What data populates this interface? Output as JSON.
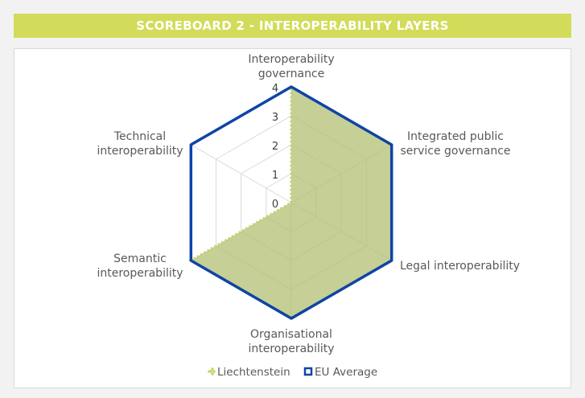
{
  "banner": {
    "title": "SCOREBOARD 2 - INTEROPERABILITY LAYERS"
  },
  "colors": {
    "banner": "#d2dc5a",
    "liechtenstein": "#c9d36a",
    "liechtenstein_fill": "#b3bf73",
    "eu_average": "#0e44a6",
    "grid": "#d9d9d9"
  },
  "chart_data": {
    "type": "radar",
    "title": "SCOREBOARD 2 - INTEROPERABILITY LAYERS",
    "categories": [
      "Interoperability governance",
      "Integrated public service governance",
      "Legal interoperability",
      "Organisational interoperability",
      "Semantic interoperability",
      "Technical interoperability"
    ],
    "category_labels": [
      [
        "Interoperability",
        "governance"
      ],
      [
        "Integrated public",
        "service governance"
      ],
      [
        "Legal interoperability"
      ],
      [
        "Organisational",
        "interoperability"
      ],
      [
        "Semantic",
        "interoperability"
      ],
      [
        "Technical",
        "interoperability"
      ]
    ],
    "range": [
      0,
      4
    ],
    "ticks": [
      "0",
      "1",
      "2",
      "3",
      "4"
    ],
    "series": [
      {
        "name": "Liechtenstein",
        "values": [
          4,
          4,
          4,
          4,
          4,
          0
        ],
        "style": "dotted-filled"
      },
      {
        "name": "EU Average",
        "values": [
          4,
          4,
          4,
          4,
          4,
          4
        ],
        "style": "solid-outline"
      }
    ],
    "legend": "bottom"
  }
}
